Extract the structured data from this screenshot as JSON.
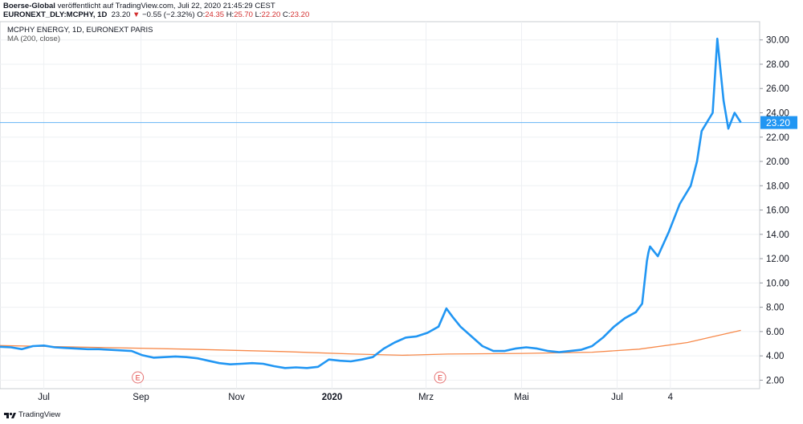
{
  "header": {
    "publisher": "Boerse-Global",
    "published_text": "veröffentlicht auf TradingView.com, Juli 22, 2020 21:45:29 CEST",
    "symbol": "EURONEXT_DLY:MCPHY, 1D",
    "last": "23.20",
    "change": "−0.55 (−2.32%)",
    "o_label": "O:",
    "o_val": "24.35",
    "h_label": "H:",
    "h_val": "25.70",
    "l_label": "L:",
    "l_val": "22.20",
    "c_label": "C:",
    "c_val": "23.20"
  },
  "legend": {
    "title": "MCPHY ENERGY, 1D, EURONEXT PARIS",
    "ma": "MA (200, close)"
  },
  "footer": {
    "brand": "TradingView"
  },
  "colors": {
    "price": "#2196f3",
    "ma": "#f7894a",
    "grid": "#eef0f3",
    "last_label_bg": "#2196f3"
  },
  "chart_data": {
    "type": "line",
    "ylim": [
      1.3,
      31.5
    ],
    "y_ticks": [
      "2.00",
      "4.00",
      "6.00",
      "8.00",
      "10.00",
      "12.00",
      "14.00",
      "16.00",
      "18.00",
      "20.00",
      "22.00",
      "24.00",
      "26.00",
      "28.00",
      "30.00"
    ],
    "x_ticks": [
      {
        "label": "Jul",
        "date": "2019-07-01"
      },
      {
        "label": "Sep",
        "date": "2019-09-01"
      },
      {
        "label": "Nov",
        "date": "2019-11-01"
      },
      {
        "label": "2020",
        "date": "2020-01-01"
      },
      {
        "label": "Mrz",
        "date": "2020-03-01"
      },
      {
        "label": "Mai",
        "date": "2020-05-01"
      },
      {
        "label": "Jul",
        "date": "2020-07-01"
      },
      {
        "label": "4",
        "date": "2020-08-04"
      }
    ],
    "last_value_label": "23.20",
    "last_value": 23.2,
    "earnings_markers": [
      {
        "label": "E",
        "date": "2019-08-30"
      },
      {
        "label": "E",
        "date": "2020-03-10"
      }
    ],
    "series": [
      {
        "values": [
          [
            "2019-06-03",
            4.75
          ],
          [
            "2019-06-10",
            4.7
          ],
          [
            "2019-06-17",
            4.55
          ],
          [
            "2019-06-24",
            4.8
          ],
          [
            "2019-07-01",
            4.85
          ],
          [
            "2019-07-08",
            4.7
          ],
          [
            "2019-07-15",
            4.65
          ],
          [
            "2019-07-22",
            4.6
          ],
          [
            "2019-07-29",
            4.55
          ],
          [
            "2019-08-05",
            4.55
          ],
          [
            "2019-08-12",
            4.5
          ],
          [
            "2019-08-19",
            4.45
          ],
          [
            "2019-08-26",
            4.4
          ],
          [
            "2019-09-02",
            4.05
          ],
          [
            "2019-09-09",
            3.85
          ],
          [
            "2019-09-16",
            3.9
          ],
          [
            "2019-09-23",
            3.95
          ],
          [
            "2019-09-30",
            3.9
          ],
          [
            "2019-10-07",
            3.8
          ],
          [
            "2019-10-14",
            3.6
          ],
          [
            "2019-10-21",
            3.4
          ],
          [
            "2019-10-28",
            3.3
          ],
          [
            "2019-11-04",
            3.35
          ],
          [
            "2019-11-11",
            3.4
          ],
          [
            "2019-11-18",
            3.35
          ],
          [
            "2019-11-25",
            3.15
          ],
          [
            "2019-12-02",
            3.0
          ],
          [
            "2019-12-09",
            3.05
          ],
          [
            "2019-12-16",
            3.0
          ],
          [
            "2019-12-23",
            3.1
          ],
          [
            "2019-12-30",
            3.7
          ],
          [
            "2020-01-06",
            3.6
          ],
          [
            "2020-01-13",
            3.55
          ],
          [
            "2020-01-20",
            3.7
          ],
          [
            "2020-01-27",
            3.9
          ],
          [
            "2020-02-03",
            4.6
          ],
          [
            "2020-02-10",
            5.1
          ],
          [
            "2020-02-17",
            5.5
          ],
          [
            "2020-02-24",
            5.6
          ],
          [
            "2020-03-02",
            5.9
          ],
          [
            "2020-03-09",
            6.4
          ],
          [
            "2020-03-14",
            7.9
          ],
          [
            "2020-03-18",
            7.2
          ],
          [
            "2020-03-23",
            6.4
          ],
          [
            "2020-03-30",
            5.6
          ],
          [
            "2020-04-06",
            4.8
          ],
          [
            "2020-04-13",
            4.4
          ],
          [
            "2020-04-20",
            4.4
          ],
          [
            "2020-04-27",
            4.6
          ],
          [
            "2020-05-04",
            4.7
          ],
          [
            "2020-05-11",
            4.6
          ],
          [
            "2020-05-18",
            4.4
          ],
          [
            "2020-05-25",
            4.3
          ],
          [
            "2020-06-01",
            4.4
          ],
          [
            "2020-06-08",
            4.5
          ],
          [
            "2020-06-15",
            4.8
          ],
          [
            "2020-06-22",
            5.5
          ],
          [
            "2020-06-29",
            6.4
          ],
          [
            "2020-07-06",
            7.1
          ],
          [
            "2020-07-13",
            7.6
          ],
          [
            "2020-07-17",
            8.3
          ],
          [
            "2020-07-20",
            11.8
          ],
          [
            "2020-07-21",
            12.5
          ],
          [
            "2020-07-22",
            13.0
          ],
          [
            "2020-07-27",
            12.2
          ],
          [
            "2020-08-03",
            14.2
          ],
          [
            "2020-08-10",
            16.5
          ],
          [
            "2020-08-17",
            18.0
          ],
          [
            "2020-08-21",
            20.0
          ],
          [
            "2020-08-24",
            22.5
          ],
          [
            "2020-08-31",
            24.0
          ],
          [
            "2020-09-03",
            30.1
          ],
          [
            "2020-09-07",
            25.0
          ],
          [
            "2020-09-10",
            22.7
          ],
          [
            "2020-09-14",
            24.0
          ],
          [
            "2020-09-18",
            23.2
          ]
        ]
      },
      {
        "values": [
          [
            "2019-06-03",
            4.85
          ],
          [
            "2019-08-01",
            4.7
          ],
          [
            "2019-10-01",
            4.55
          ],
          [
            "2019-12-01",
            4.35
          ],
          [
            "2020-01-15",
            4.15
          ],
          [
            "2020-02-15",
            4.05
          ],
          [
            "2020-03-15",
            4.15
          ],
          [
            "2020-05-01",
            4.2
          ],
          [
            "2020-06-15",
            4.3
          ],
          [
            "2020-07-15",
            4.55
          ],
          [
            "2020-08-15",
            5.1
          ],
          [
            "2020-09-01",
            5.6
          ],
          [
            "2020-09-18",
            6.1
          ]
        ]
      }
    ]
  }
}
